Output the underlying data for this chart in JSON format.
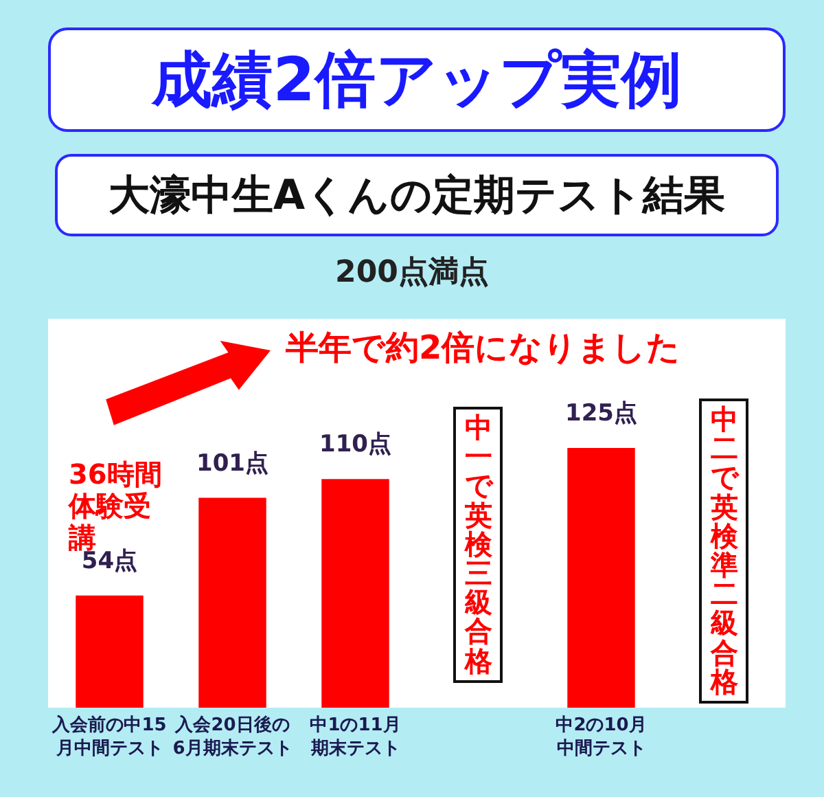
{
  "chart_data": {
    "type": "bar",
    "title": "成績2倍アップ実例",
    "subtitle": "大濠中生Aくんの定期テスト結果",
    "categories": [
      "入会前の中15月中間テスト",
      "入会20日後の6月期末テスト",
      "中1の11月期末テスト",
      null,
      "中2の10月中間テスト",
      null
    ],
    "values": [
      54,
      101,
      110,
      null,
      125,
      null
    ],
    "value_labels": [
      "54点",
      "101点",
      "110点",
      null,
      "125点",
      null
    ],
    "color": "#ff0000",
    "annotations": [
      "200点満点",
      "半年で約2倍になりました",
      "36時間体験受講",
      "中一で英検三級合格",
      "中二で英検準二級合格"
    ]
  }
}
